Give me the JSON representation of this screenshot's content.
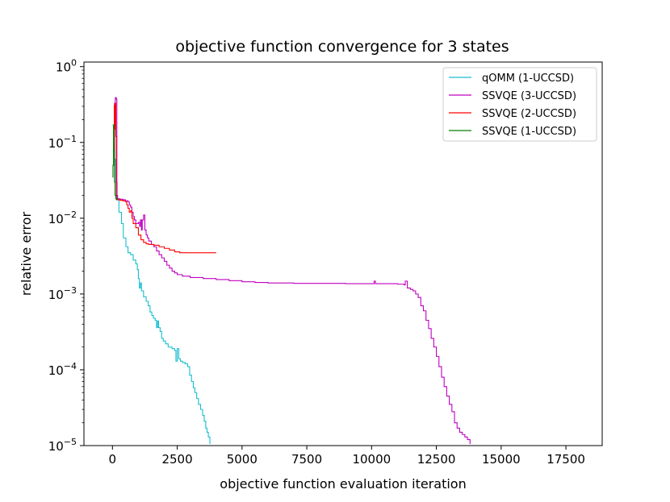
{
  "chart_data": {
    "type": "line",
    "title": "objective function convergence for 3 states",
    "xlabel": "objective function evaluation iteration",
    "ylabel": "relative error",
    "x_scale": "linear",
    "y_scale": "log",
    "xlim": [
      -1100,
      18900
    ],
    "ylim": [
      1e-05,
      1.15
    ],
    "x_ticks": [
      0,
      2500,
      5000,
      7500,
      10000,
      12500,
      15000,
      17500
    ],
    "y_ticks": [
      {
        "value": 1,
        "base": "10",
        "exp": "0"
      },
      {
        "value": 0.1,
        "base": "10",
        "exp": "−1"
      },
      {
        "value": 0.01,
        "base": "10",
        "exp": "−2"
      },
      {
        "value": 0.001,
        "base": "10",
        "exp": "−3"
      },
      {
        "value": 0.0001,
        "base": "10",
        "exp": "−4"
      },
      {
        "value": 1e-05,
        "base": "10",
        "exp": "−5"
      }
    ],
    "grid": false,
    "legend_position": "top-right",
    "step_lines": true,
    "series": [
      {
        "name": "qOMM (1-UCCSD)",
        "color": "#17becf",
        "points": [
          [
            0,
            0.17
          ],
          [
            60,
            0.06
          ],
          [
            120,
            0.03
          ],
          [
            180,
            0.018
          ],
          [
            250,
            0.012
          ],
          [
            350,
            0.0085
          ],
          [
            420,
            0.0055
          ],
          [
            520,
            0.0042
          ],
          [
            600,
            0.0035
          ],
          [
            700,
            0.0033
          ],
          [
            800,
            0.0028
          ],
          [
            900,
            0.0025
          ],
          [
            960,
            0.0021
          ],
          [
            1000,
            0.0016
          ],
          [
            1040,
            0.0012
          ],
          [
            1080,
            0.0014
          ],
          [
            1120,
            0.0011
          ],
          [
            1200,
            0.00092
          ],
          [
            1300,
            0.0008
          ],
          [
            1380,
            0.0007
          ],
          [
            1450,
            0.00058
          ],
          [
            1520,
            0.00052
          ],
          [
            1580,
            0.00048
          ],
          [
            1650,
            0.00045
          ],
          [
            1700,
            0.00036
          ],
          [
            1740,
            0.00044
          ],
          [
            1780,
            0.00036
          ],
          [
            1840,
            0.00032
          ],
          [
            1900,
            0.00026
          ],
          [
            1960,
            0.00024
          ],
          [
            2050,
            0.00022
          ],
          [
            2150,
            0.0002
          ],
          [
            2300,
            0.00019
          ],
          [
            2400,
            0.00018
          ],
          [
            2450,
            0.00013
          ],
          [
            2500,
            0.00019
          ],
          [
            2560,
            0.00014
          ],
          [
            2620,
            0.00013
          ],
          [
            2700,
            0.000125
          ],
          [
            2800,
            0.00012
          ],
          [
            2900,
            0.00011
          ],
          [
            2980,
            8.5e-05
          ],
          [
            3050,
            7e-05
          ],
          [
            3120,
            5.8e-05
          ],
          [
            3180,
            5e-05
          ],
          [
            3250,
            4.2e-05
          ],
          [
            3320,
            3.5e-05
          ],
          [
            3400,
            3e-05
          ],
          [
            3480,
            2.5e-05
          ],
          [
            3540,
            2.1e-05
          ],
          [
            3600,
            1.7e-05
          ],
          [
            3650,
            1.5e-05
          ],
          [
            3700,
            1.3e-05
          ],
          [
            3760,
            1.05e-05
          ]
        ]
      },
      {
        "name": "SSVQE (3-UCCSD)",
        "color": "#bf00bf",
        "points": [
          [
            60,
            0.05
          ],
          [
            80,
            0.33
          ],
          [
            110,
            0.39
          ],
          [
            150,
            0.37
          ],
          [
            170,
            0.02
          ],
          [
            200,
            0.018
          ],
          [
            300,
            0.0178
          ],
          [
            400,
            0.0175
          ],
          [
            500,
            0.017
          ],
          [
            600,
            0.0165
          ],
          [
            650,
            0.015
          ],
          [
            700,
            0.014
          ],
          [
            750,
            0.012
          ],
          [
            800,
            0.0105
          ],
          [
            850,
            0.0095
          ],
          [
            900,
            0.0085
          ],
          [
            1000,
            0.0088
          ],
          [
            1050,
            0.0078
          ],
          [
            1080,
            0.0095
          ],
          [
            1120,
            0.007
          ],
          [
            1150,
            0.0095
          ],
          [
            1200,
            0.011
          ],
          [
            1250,
            0.007
          ],
          [
            1300,
            0.006
          ],
          [
            1350,
            0.0055
          ],
          [
            1400,
            0.005
          ],
          [
            1500,
            0.0045
          ],
          [
            1600,
            0.0042
          ],
          [
            1700,
            0.0037
          ],
          [
            1800,
            0.0033
          ],
          [
            1900,
            0.003
          ],
          [
            2000,
            0.0027
          ],
          [
            2100,
            0.0024
          ],
          [
            2200,
            0.0022
          ],
          [
            2300,
            0.002
          ],
          [
            2400,
            0.0019
          ],
          [
            2500,
            0.0018
          ],
          [
            2700,
            0.00172
          ],
          [
            3000,
            0.00165
          ],
          [
            3500,
            0.0016
          ],
          [
            4000,
            0.00155
          ],
          [
            4500,
            0.0015
          ],
          [
            5000,
            0.00145
          ],
          [
            5500,
            0.00142
          ],
          [
            6000,
            0.0014
          ],
          [
            7000,
            0.00138
          ],
          [
            8000,
            0.00138
          ],
          [
            9000,
            0.00137
          ],
          [
            10000,
            0.00137
          ],
          [
            10100,
            0.00148
          ],
          [
            10150,
            0.00137
          ],
          [
            11000,
            0.00135
          ],
          [
            11250,
            0.00132
          ],
          [
            11300,
            0.00148
          ],
          [
            11380,
            0.0012
          ],
          [
            11500,
            0.00115
          ],
          [
            11600,
            0.0011
          ],
          [
            11700,
            0.001
          ],
          [
            11800,
            0.0009
          ],
          [
            11900,
            0.0007
          ],
          [
            12000,
            0.0006
          ],
          [
            12100,
            0.00045
          ],
          [
            12200,
            0.00035
          ],
          [
            12300,
            0.00026
          ],
          [
            12400,
            0.0002
          ],
          [
            12500,
            0.00015
          ],
          [
            12600,
            0.00011
          ],
          [
            12700,
            8e-05
          ],
          [
            12800,
            6e-05
          ],
          [
            12900,
            4.5e-05
          ],
          [
            13000,
            3.5e-05
          ],
          [
            13100,
            2.8e-05
          ],
          [
            13200,
            2e-05
          ],
          [
            13300,
            1.7e-05
          ],
          [
            13400,
            1.5e-05
          ],
          [
            13500,
            1.4e-05
          ],
          [
            13600,
            1.3e-05
          ],
          [
            13700,
            1.2e-05
          ],
          [
            13800,
            1.05e-05
          ]
        ]
      },
      {
        "name": "SSVQE (2-UCCSD)",
        "color": "#ff0000",
        "points": [
          [
            50,
            0.08
          ],
          [
            70,
            0.31
          ],
          [
            90,
            0.15
          ],
          [
            110,
            0.33
          ],
          [
            130,
            0.12
          ],
          [
            150,
            0.018
          ],
          [
            200,
            0.0175
          ],
          [
            300,
            0.0172
          ],
          [
            400,
            0.017
          ],
          [
            500,
            0.0165
          ],
          [
            550,
            0.015
          ],
          [
            600,
            0.0135
          ],
          [
            650,
            0.012
          ],
          [
            700,
            0.0125
          ],
          [
            750,
            0.01
          ],
          [
            800,
            0.0085
          ],
          [
            900,
            0.0075
          ],
          [
            1000,
            0.006
          ],
          [
            1100,
            0.0052
          ],
          [
            1200,
            0.0048
          ],
          [
            1300,
            0.0046
          ],
          [
            1400,
            0.0045
          ],
          [
            1600,
            0.0044
          ],
          [
            1800,
            0.0042
          ],
          [
            2000,
            0.004
          ],
          [
            2200,
            0.0038
          ],
          [
            2400,
            0.0036
          ],
          [
            2600,
            0.0035
          ],
          [
            3000,
            0.0035
          ],
          [
            3500,
            0.0035
          ],
          [
            4000,
            0.0035
          ]
        ]
      },
      {
        "name": "SSVQE (1-UCCSD)",
        "color": "#007f00",
        "points": [
          [
            0,
            0.035
          ],
          [
            20,
            0.05
          ],
          [
            40,
            0.17
          ],
          [
            60,
            0.08
          ],
          [
            80,
            0.03
          ],
          [
            100,
            0.02
          ],
          [
            130,
            0.018
          ],
          [
            160,
            0.0175
          ],
          [
            200,
            0.0175
          ]
        ]
      }
    ]
  }
}
